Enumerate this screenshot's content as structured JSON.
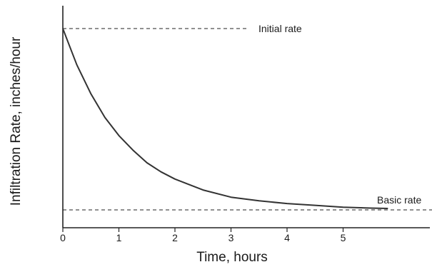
{
  "chart_data": {
    "type": "line",
    "title": "",
    "xlabel": "Time, hours",
    "ylabel": "Infiltration Rate, inches/hour",
    "xlim": [
      0,
      6.4
    ],
    "x_ticks": [
      "0",
      "1",
      "2",
      "3",
      "4",
      "5"
    ],
    "grid": false,
    "legend": "none",
    "series": [
      {
        "x": [
          0,
          0.1,
          0.25,
          0.5,
          0.75,
          1.0,
          1.25,
          1.5,
          1.75,
          2.0,
          2.25,
          2.5,
          3.0,
          3.5,
          4.0,
          4.5,
          5.0,
          5.5,
          5.8
        ],
        "y": [
          1.0,
          0.92,
          0.8,
          0.64,
          0.51,
          0.41,
          0.33,
          0.26,
          0.21,
          0.17,
          0.14,
          0.11,
          0.07,
          0.05,
          0.035,
          0.025,
          0.015,
          0.01,
          0.008
        ]
      }
    ],
    "reference_lines": [
      {
        "label": "Initial rate",
        "y": 1.0
      },
      {
        "label": "Basic rate",
        "y": 0.0
      }
    ],
    "colors": {
      "curve": "#333333",
      "axes": "#222222",
      "text": "#1a1a1a"
    }
  }
}
